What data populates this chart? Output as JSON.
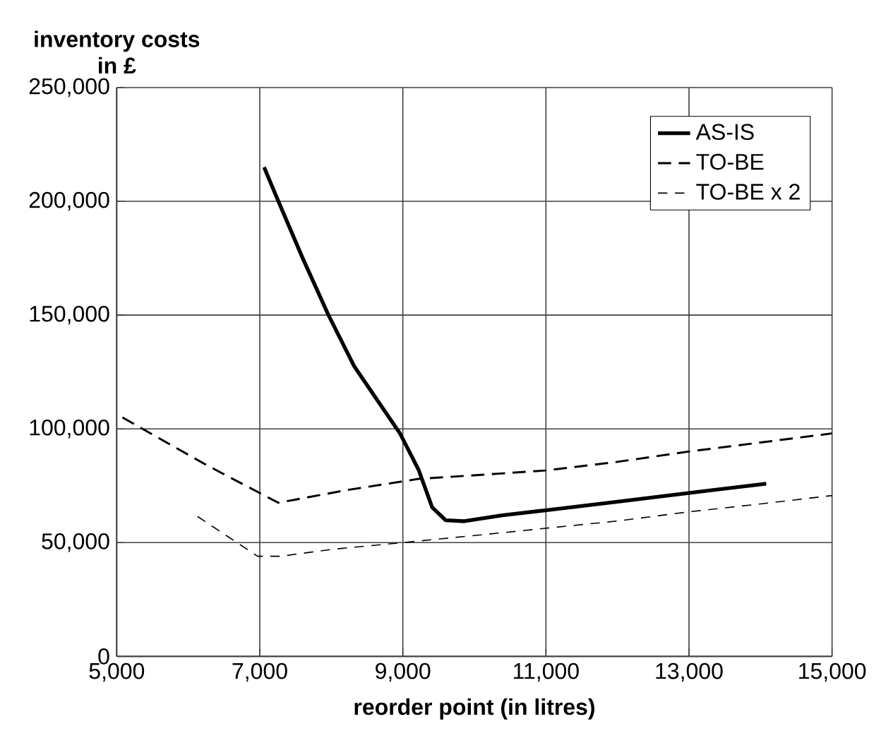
{
  "chart_data": {
    "type": "line",
    "ylabel": "inventory costs in £",
    "xlabel": "reorder point (in litres)",
    "xlim": [
      5000,
      15000
    ],
    "ylim": [
      0,
      250000
    ],
    "xticks": [
      {
        "value": 5000,
        "label": "5,000"
      },
      {
        "value": 7000,
        "label": "7,000"
      },
      {
        "value": 9000,
        "label": "9,000"
      },
      {
        "value": 11000,
        "label": "11,000"
      },
      {
        "value": 13000,
        "label": "13,000"
      },
      {
        "value": 15000,
        "label": "15,000"
      }
    ],
    "yticks": [
      {
        "value": 0,
        "label": "0"
      },
      {
        "value": 50000,
        "label": "50,000"
      },
      {
        "value": 100000,
        "label": "100,000"
      },
      {
        "value": 150000,
        "label": "150,000"
      },
      {
        "value": 200000,
        "label": "200,000"
      },
      {
        "value": 250000,
        "label": "250,000"
      }
    ],
    "grid": true,
    "legend": "top right",
    "marker": "none",
    "series": [
      {
        "name": "AS-IS",
        "color": "#000000",
        "line_style": "solid",
        "x": [
          7060,
          7260,
          7600,
          7960,
          8320,
          8960,
          9220,
          9410,
          9600,
          9860,
          10390,
          10990,
          12000,
          12990,
          14080
        ],
        "values": [
          215000,
          200000,
          175000,
          150000,
          127500,
          98000,
          82000,
          65500,
          59800,
          59400,
          62000,
          64200,
          68000,
          71800,
          75900
        ]
      },
      {
        "name": "TO-BE",
        "color": "#000000",
        "line_style": "dashed",
        "x": [
          5080,
          6260,
          7260,
          8200,
          9220,
          10380,
          10990,
          12000,
          12990,
          14000,
          15000
        ],
        "values": [
          105000,
          84000,
          67500,
          73000,
          78000,
          80400,
          81700,
          85500,
          90000,
          94000,
          98000
        ]
      },
      {
        "name": "TO-BE x 2",
        "color": "#000000",
        "line_style": "dashed",
        "x": [
          6130,
          6970,
          7290,
          8000,
          9000,
          10380,
          10990,
          12000,
          12990,
          14000,
          15000
        ],
        "values": [
          61500,
          44000,
          44000,
          47000,
          50000,
          54300,
          56300,
          59500,
          63500,
          67000,
          70700
        ]
      }
    ]
  }
}
